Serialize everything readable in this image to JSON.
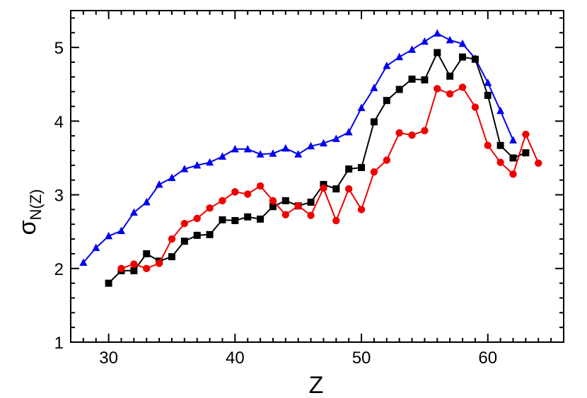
{
  "chart_data": {
    "type": "line",
    "xlabel": "Z",
    "ylabel": {
      "symbol": "σ",
      "subscript": "N(Z)"
    },
    "xlim": [
      27,
      66
    ],
    "ylim": [
      1,
      5.5
    ],
    "x_ticks": [
      30,
      40,
      50,
      60
    ],
    "y_ticks": [
      1,
      2,
      3,
      4,
      5
    ],
    "grid": false,
    "legend": "none",
    "series": [
      {
        "color": "#0000ee",
        "marker": "triangle",
        "x": [
          28,
          29,
          30,
          31,
          32,
          33,
          34,
          35,
          36,
          37,
          38,
          39,
          40,
          41,
          42,
          43,
          44,
          45,
          46,
          47,
          48,
          49,
          50,
          51,
          52,
          53,
          54,
          55,
          56,
          57,
          58,
          59,
          60,
          61,
          62
        ],
        "values": [
          2.08,
          2.28,
          2.44,
          2.51,
          2.76,
          2.9,
          3.14,
          3.23,
          3.35,
          3.4,
          3.44,
          3.52,
          3.62,
          3.62,
          3.55,
          3.56,
          3.63,
          3.55,
          3.66,
          3.7,
          3.76,
          3.85,
          4.18,
          4.45,
          4.75,
          4.87,
          4.97,
          5.08,
          5.19,
          5.1,
          5.05,
          4.85,
          4.52,
          4.14,
          3.74
        ]
      },
      {
        "color": "#000000",
        "marker": "square",
        "x": [
          30,
          31,
          32,
          33,
          34,
          35,
          36,
          37,
          38,
          39,
          40,
          41,
          42,
          43,
          44,
          45,
          46,
          47,
          48,
          49,
          50,
          51,
          52,
          53,
          54,
          55,
          56,
          57,
          58,
          59,
          60,
          61,
          62,
          63
        ],
        "values": [
          1.8,
          1.97,
          1.97,
          2.2,
          2.1,
          2.16,
          2.37,
          2.45,
          2.46,
          2.66,
          2.65,
          2.7,
          2.67,
          2.84,
          2.92,
          2.85,
          2.9,
          3.14,
          3.08,
          3.35,
          3.37,
          3.99,
          4.28,
          4.43,
          4.57,
          4.56,
          4.93,
          4.61,
          4.87,
          4.84,
          4.35,
          3.67,
          3.5,
          3.57
        ]
      },
      {
        "color": "#ee0000",
        "marker": "circle",
        "x": [
          31,
          32,
          33,
          34,
          35,
          36,
          37,
          38,
          39,
          40,
          41,
          42,
          43,
          44,
          45,
          46,
          47,
          48,
          49,
          50,
          51,
          52,
          53,
          54,
          55,
          56,
          57,
          58,
          59,
          60,
          61,
          62,
          63,
          64
        ],
        "values": [
          2.0,
          2.06,
          2.0,
          2.07,
          2.4,
          2.61,
          2.68,
          2.82,
          2.92,
          3.04,
          3.01,
          3.12,
          2.92,
          2.73,
          2.85,
          2.72,
          3.09,
          2.65,
          3.08,
          2.8,
          3.31,
          3.47,
          3.84,
          3.81,
          3.87,
          4.44,
          4.37,
          4.46,
          4.19,
          3.67,
          3.44,
          3.28,
          3.82,
          3.43
        ]
      }
    ]
  }
}
